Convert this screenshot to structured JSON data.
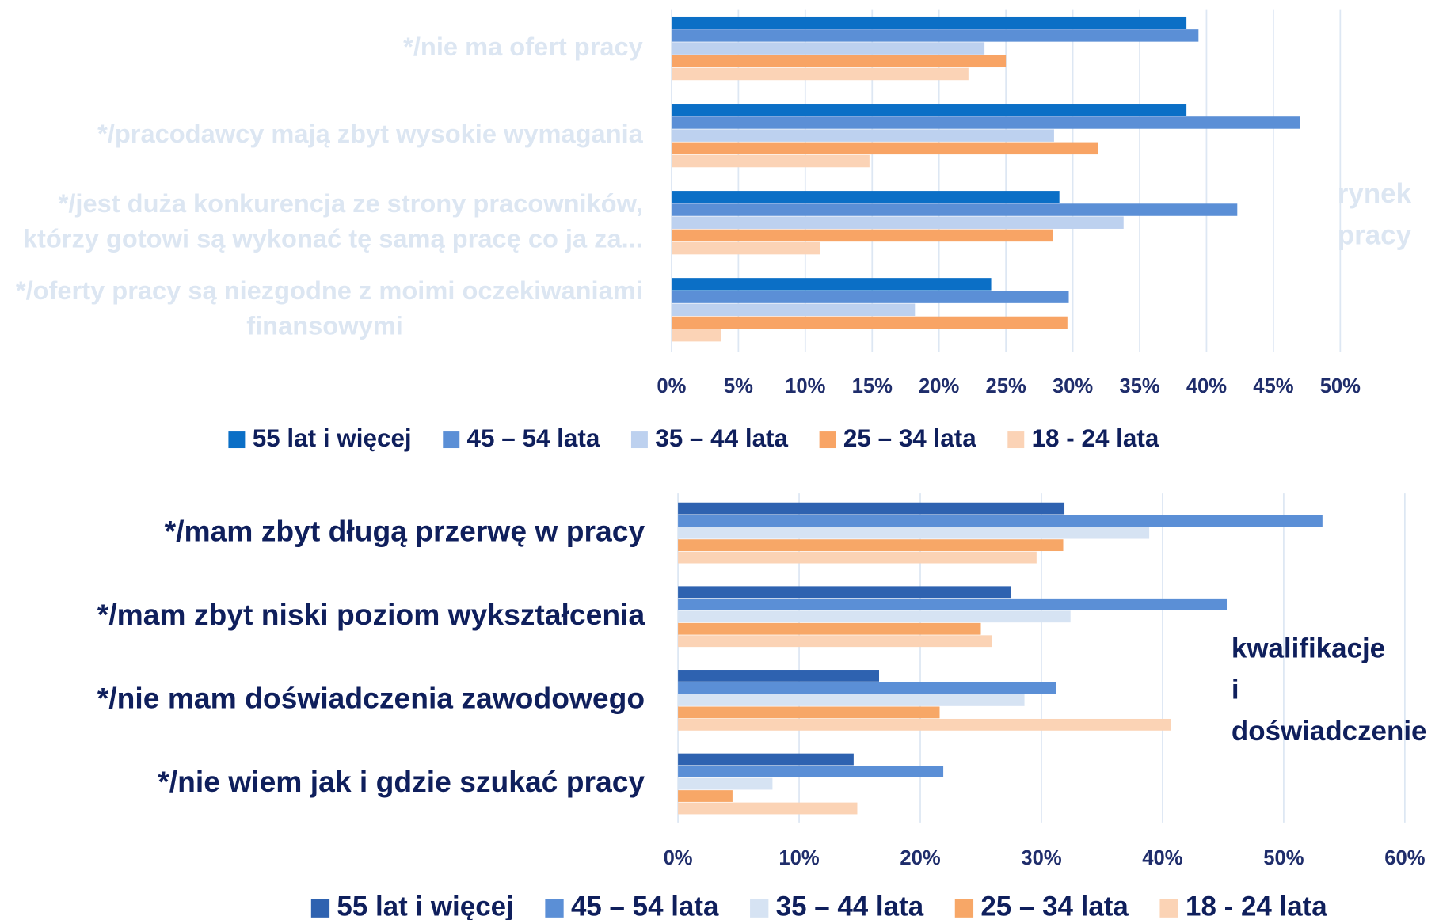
{
  "chart_data": [
    {
      "type": "bar",
      "orientation": "horizontal",
      "categories": [
        [
          "*/nie ma ofert pracy"
        ],
        [
          "*/pracodawcy mają zbyt wysokie wymagania"
        ],
        [
          "*/jest duża konkurencja ze strony pracowników,",
          "którzy gotowi są wykonać tę samą pracę co ja za..."
        ],
        [
          "*/oferty pracy są niezgodne z moimi oczekiwaniami",
          "finansowymi"
        ]
      ],
      "series": [
        {
          "name": "55 lat i więcej",
          "color": "#0b6fc6",
          "values": [
            38.5,
            38.5,
            29.0,
            23.9
          ]
        },
        {
          "name": "45 – 54 lata",
          "color": "#5b8fd6",
          "values": [
            39.4,
            47.0,
            42.3,
            29.7
          ]
        },
        {
          "name": "35 – 44 lata",
          "color": "#bdd1ef",
          "values": [
            23.4,
            28.6,
            33.8,
            18.2
          ]
        },
        {
          "name": "25 – 34 lata",
          "color": "#f8a465",
          "values": [
            25.0,
            31.9,
            28.5,
            29.6
          ]
        },
        {
          "name": "18 - 24 lata",
          "color": "#fbd3b6",
          "values": [
            22.2,
            14.8,
            11.1,
            3.7
          ]
        }
      ],
      "xlim": [
        0,
        50
      ],
      "xticks": [
        {
          "value": 0,
          "label": "0%"
        },
        {
          "value": 5,
          "label": "5%"
        },
        {
          "value": 10,
          "label": "10%"
        },
        {
          "value": 15,
          "label": "15%"
        },
        {
          "value": 20,
          "label": "20%"
        },
        {
          "value": 25,
          "label": "25%"
        },
        {
          "value": 30,
          "label": "30%"
        },
        {
          "value": 35,
          "label": "35%"
        },
        {
          "value": 40,
          "label": "40%"
        },
        {
          "value": 45,
          "label": "45%"
        },
        {
          "value": 50,
          "label": "50%"
        }
      ],
      "grid": true,
      "legend": "bottom",
      "side_label": [
        "rynek",
        "pracy"
      ]
    },
    {
      "type": "bar",
      "orientation": "horizontal",
      "categories": [
        [
          "*/mam zbyt długą przerwę w pracy"
        ],
        [
          "*/mam zbyt niski poziom wykształcenia"
        ],
        [
          "*/nie mam doświadczenia zawodowego"
        ],
        [
          "*/nie wiem jak i gdzie szukać pracy"
        ]
      ],
      "series": [
        {
          "name": "55 lat i więcej",
          "color": "#2e62b0",
          "values": [
            31.9,
            27.5,
            16.6,
            14.5
          ]
        },
        {
          "name": "45 – 54 lata",
          "color": "#5b8fd6",
          "values": [
            53.2,
            45.3,
            31.2,
            21.9
          ]
        },
        {
          "name": "35 – 44 lata",
          "color": "#d6e3f3",
          "values": [
            38.9,
            32.4,
            28.6,
            7.8
          ]
        },
        {
          "name": "25 – 34 lata",
          "color": "#f7a767",
          "values": [
            31.8,
            25.0,
            21.6,
            4.5
          ]
        },
        {
          "name": "18 - 24 lata",
          "color": "#fbd3b5",
          "values": [
            29.6,
            25.9,
            40.7,
            14.8
          ]
        }
      ],
      "xlim": [
        0,
        60
      ],
      "xticks": [
        {
          "value": 0,
          "label": "0%"
        },
        {
          "value": 10,
          "label": "10%"
        },
        {
          "value": 20,
          "label": "20%"
        },
        {
          "value": 30,
          "label": "30%"
        },
        {
          "value": 40,
          "label": "40%"
        },
        {
          "value": 50,
          "label": "50%"
        },
        {
          "value": 60,
          "label": "60%"
        }
      ],
      "grid": true,
      "legend": "bottom",
      "side_label": [
        "kwalifikacje",
        "i",
        "doświadczenie"
      ]
    }
  ]
}
